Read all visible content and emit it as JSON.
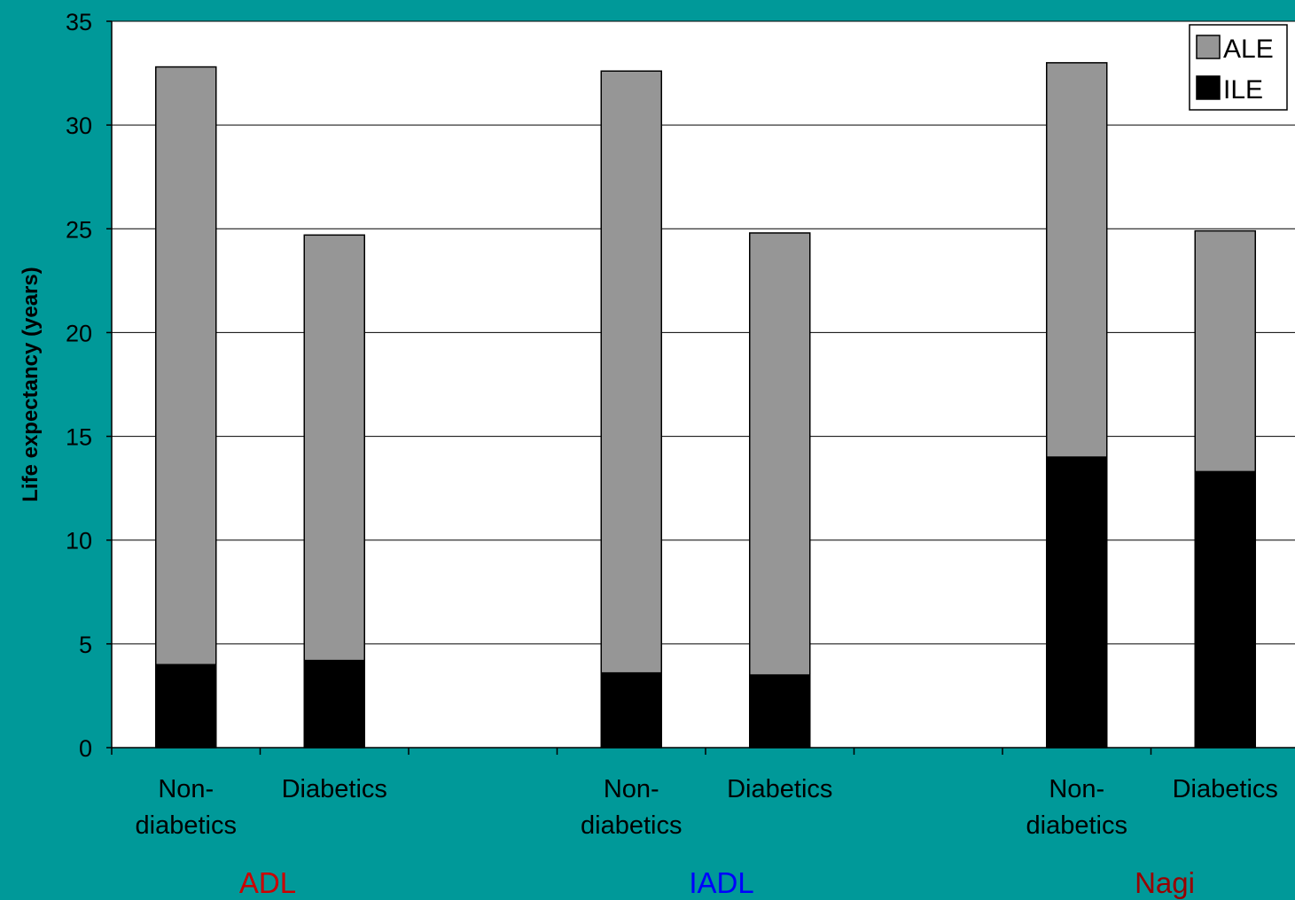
{
  "chart_data": {
    "type": "bar",
    "stacked": true,
    "ylabel": "Life expectancy (years)",
    "xlabel": "",
    "ylim": [
      0,
      35
    ],
    "yticks": [
      0,
      5,
      10,
      15,
      20,
      25,
      30,
      35
    ],
    "grid": true,
    "legend_position": "top-right",
    "groups": [
      {
        "name": "ADL",
        "color": "#cc0000",
        "categories": [
          "Non-diabetics",
          "Diabetics"
        ]
      },
      {
        "name": "IADL",
        "color": "#0000ff",
        "categories": [
          "Non-diabetics",
          "Diabetics"
        ]
      },
      {
        "name": "Nagi",
        "color": "#990000",
        "categories": [
          "Non-diabetics",
          "Diabetics"
        ]
      }
    ],
    "categories": [
      "Non-diabetics",
      "Diabetics",
      "",
      "Non-diabetics",
      "Diabetics",
      "",
      "Non-diabetics",
      "Diabetics"
    ],
    "series": [
      {
        "name": "ILE",
        "color": "#000000",
        "values": [
          4.0,
          4.2,
          null,
          3.6,
          3.5,
          null,
          14.0,
          13.3
        ]
      },
      {
        "name": "ALE",
        "color": "#969696",
        "values": [
          28.8,
          20.5,
          null,
          29.0,
          21.3,
          null,
          19.0,
          11.6
        ]
      }
    ],
    "legend": [
      {
        "name": "ALE",
        "color": "#969696"
      },
      {
        "name": "ILE",
        "color": "#000000"
      }
    ]
  }
}
